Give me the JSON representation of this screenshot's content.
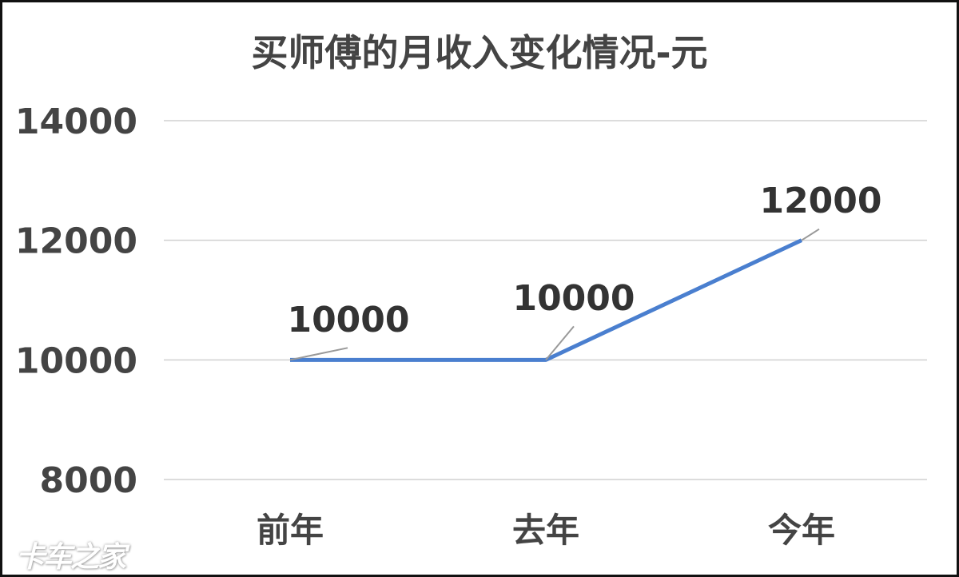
{
  "chart_data": {
    "type": "line",
    "title": "买师傅的月收入变化情况-元",
    "categories": [
      "前年",
      "去年",
      "今年"
    ],
    "values": [
      10000,
      10000,
      12000
    ],
    "data_labels": [
      "10000",
      "10000",
      "12000"
    ],
    "yticks": [
      "8000",
      "10000",
      "12000",
      "14000"
    ],
    "ylim": [
      8000,
      14000
    ],
    "grid": true,
    "line_color": "#4a7fcf",
    "legend": "none"
  },
  "watermark": "卡车之家"
}
